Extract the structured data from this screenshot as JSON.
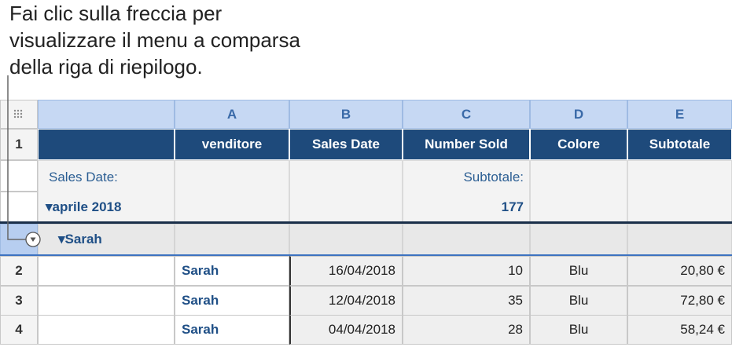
{
  "callout": {
    "lines": [
      "Fai clic sulla freccia per",
      "visualizzare il menu a comparsa",
      "della riga di riepilogo."
    ]
  },
  "table": {
    "column_letters": [
      "A",
      "B",
      "C",
      "D",
      "E"
    ],
    "header_row_number": "1",
    "header": [
      "venditore",
      "Sales Date",
      "Number Sold",
      "Colore",
      "Subtotale"
    ],
    "summary": {
      "group_label": "Sales Date:",
      "group_value": "aprile 2018",
      "subtotal_label": "Subtotale:",
      "subtotal_value": "177"
    },
    "subgroup": "Sarah",
    "rows": [
      {
        "number": "2",
        "cells": [
          "Sarah",
          "16/04/2018",
          "10",
          "Blu",
          "20,80 €"
        ]
      },
      {
        "number": "3",
        "cells": [
          "Sarah",
          "12/04/2018",
          "35",
          "Blu",
          "72,80 €"
        ]
      },
      {
        "number": "4",
        "cells": [
          "Sarah",
          "04/04/2018",
          "28",
          "Blu",
          "58,24 €"
        ]
      }
    ]
  }
}
